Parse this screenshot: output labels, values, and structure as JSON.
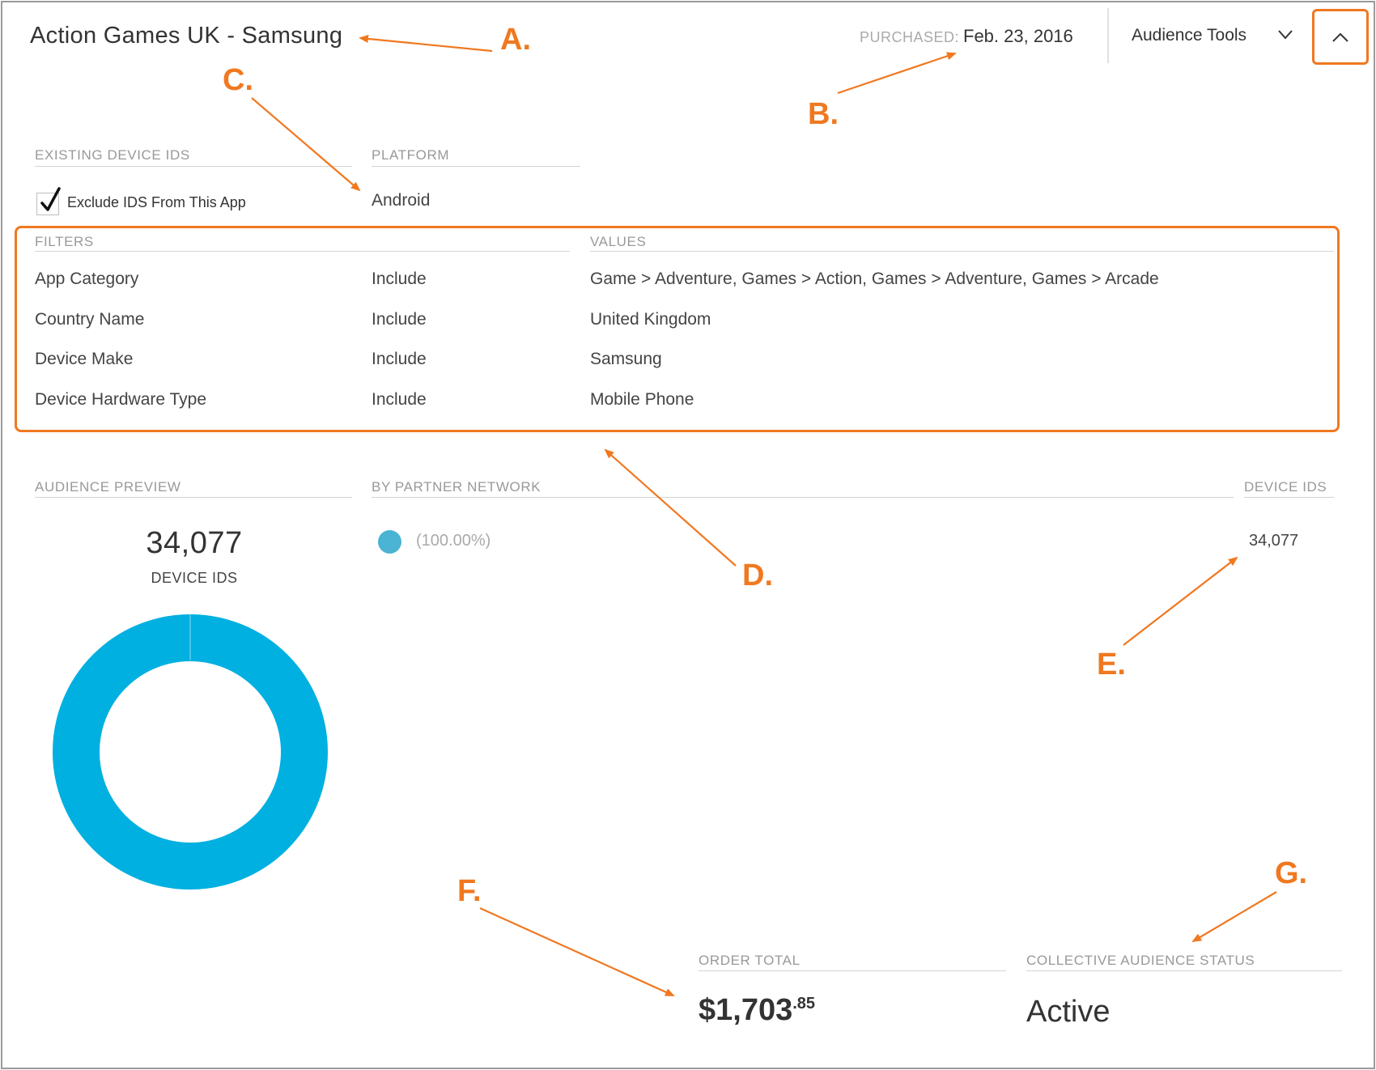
{
  "header": {
    "title": "Action Games UK - Samsung",
    "purchased_label": "PURCHASED:",
    "purchased_date": "Feb. 23, 2016",
    "audience_tools_label": "Audience Tools"
  },
  "device_section": {
    "existing_ids_label": "EXISTING DEVICE IDS",
    "exclude_label": "Exclude IDS From This App",
    "exclude_checked": true,
    "platform_label": "PLATFORM",
    "platform_value": "Android"
  },
  "filters": {
    "filters_header": "FILTERS",
    "values_header": "VALUES",
    "rows": [
      {
        "name": "App Category",
        "mode": "Include",
        "value": "Game > Adventure, Games > Action, Games > Adventure, Games > Arcade"
      },
      {
        "name": "Country Name",
        "mode": "Include",
        "value": "United Kingdom"
      },
      {
        "name": "Device Make",
        "mode": "Include",
        "value": "Samsung"
      },
      {
        "name": "Device Hardware Type",
        "mode": "Include",
        "value": "Mobile Phone"
      }
    ]
  },
  "audience": {
    "preview_label": "AUDIENCE PREVIEW",
    "partner_label": "BY PARTNER NETWORK",
    "device_ids_col_label": "DEVICE IDS",
    "total": "34,077",
    "total_sub": "DEVICE IDS",
    "legend_pct": "(100.00%)",
    "device_ids_value": "34,077",
    "donut_fraction": 1.0
  },
  "order": {
    "label": "ORDER TOTAL",
    "amount_main": "$1,703",
    "amount_cents": ".85"
  },
  "status": {
    "label": "COLLECTIVE AUDIENCE STATUS",
    "value": "Active"
  },
  "callouts": [
    "A.",
    "B.",
    "C.",
    "D.",
    "E.",
    "F.",
    "G."
  ],
  "colors": {
    "accent": "#f07820",
    "donut": "#00b0e0",
    "legend_dot": "#4bb3d4"
  }
}
